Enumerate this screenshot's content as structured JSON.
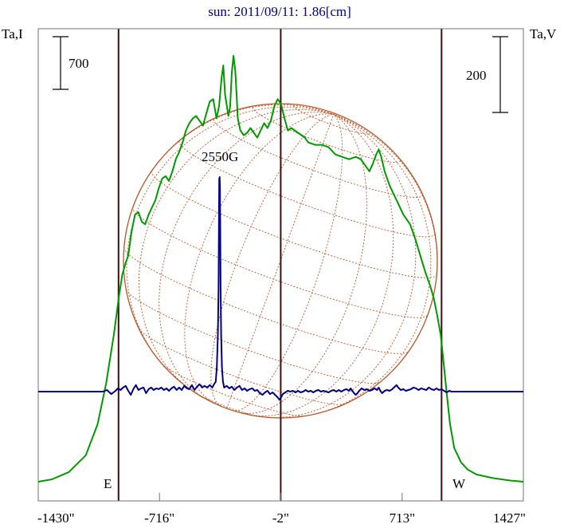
{
  "chart_data": {
    "type": "line",
    "title": "sun: 2011/09/11: 1.86[cm]",
    "left_axis_label": "Ta,I",
    "right_axis_label": "Ta,V",
    "left_scale_bar": "700",
    "right_scale_bar": "200",
    "x_tick_labels": [
      "-1430\"",
      "-716\"",
      "-2\"",
      "713\"",
      "1427\""
    ],
    "x_ticks": [
      -1430,
      -716,
      -2,
      713,
      1427
    ],
    "xlim": [
      -1430,
      1427
    ],
    "limb_labels": {
      "east": "E",
      "west": "W"
    },
    "limb_positions": [
      -957,
      945
    ],
    "center_line": -2,
    "annotations": [
      {
        "text": "2550G",
        "x": -360
      }
    ],
    "colors": {
      "stokes_I": "#009900",
      "stokes_V": "#000080",
      "disk": "#b5562a",
      "limb_lines": "#3a1010",
      "title": "#000080"
    },
    "series": [
      {
        "name": "I",
        "axis": "left",
        "points": [
          [
            -1430,
            0.01
          ],
          [
            -1350,
            0.02
          ],
          [
            -1250,
            0.05
          ],
          [
            -1150,
            0.12
          ],
          [
            -1080,
            0.25
          ],
          [
            -1030,
            0.42
          ],
          [
            -985,
            0.62
          ],
          [
            -955,
            0.78
          ],
          [
            -935,
            0.87
          ],
          [
            -915,
            0.92
          ],
          [
            -900,
            0.95
          ],
          [
            -880,
            1.05
          ],
          [
            -860,
            1.12
          ],
          [
            -840,
            1.13
          ],
          [
            -820,
            1.09
          ],
          [
            -800,
            1.08
          ],
          [
            -780,
            1.12
          ],
          [
            -760,
            1.15
          ],
          [
            -740,
            1.18
          ],
          [
            -720,
            1.23
          ],
          [
            -700,
            1.27
          ],
          [
            -680,
            1.28
          ],
          [
            -660,
            1.26
          ],
          [
            -640,
            1.3
          ],
          [
            -620,
            1.35
          ],
          [
            -600,
            1.38
          ],
          [
            -580,
            1.42
          ],
          [
            -560,
            1.47
          ],
          [
            -540,
            1.5
          ],
          [
            -520,
            1.52
          ],
          [
            -500,
            1.53
          ],
          [
            -480,
            1.51
          ],
          [
            -460,
            1.49
          ],
          [
            -440,
            1.54
          ],
          [
            -420,
            1.59
          ],
          [
            -400,
            1.6
          ],
          [
            -380,
            1.52
          ],
          [
            -365,
            1.57
          ],
          [
            -350,
            1.69
          ],
          [
            -340,
            1.74
          ],
          [
            -330,
            1.62
          ],
          [
            -310,
            1.53
          ],
          [
            -300,
            1.57
          ],
          [
            -290,
            1.71
          ],
          [
            -280,
            1.78
          ],
          [
            -270,
            1.72
          ],
          [
            -262,
            1.62
          ],
          [
            -255,
            1.52
          ],
          [
            -240,
            1.47
          ],
          [
            -220,
            1.45
          ],
          [
            -200,
            1.46
          ],
          [
            -180,
            1.48
          ],
          [
            -160,
            1.46
          ],
          [
            -140,
            1.44
          ],
          [
            -120,
            1.47
          ],
          [
            -100,
            1.5
          ],
          [
            -80,
            1.48
          ],
          [
            -60,
            1.51
          ],
          [
            -40,
            1.57
          ],
          [
            -20,
            1.6
          ],
          [
            0,
            1.58
          ],
          [
            20,
            1.52
          ],
          [
            40,
            1.47
          ],
          [
            60,
            1.48
          ],
          [
            80,
            1.47
          ],
          [
            100,
            1.46
          ],
          [
            120,
            1.45
          ],
          [
            140,
            1.44
          ],
          [
            160,
            1.42
          ],
          [
            200,
            1.41
          ],
          [
            240,
            1.41
          ],
          [
            280,
            1.4
          ],
          [
            320,
            1.37
          ],
          [
            360,
            1.36
          ],
          [
            400,
            1.35
          ],
          [
            440,
            1.36
          ],
          [
            470,
            1.35
          ],
          [
            500,
            1.32
          ],
          [
            520,
            1.3
          ],
          [
            540,
            1.33
          ],
          [
            560,
            1.37
          ],
          [
            575,
            1.39
          ],
          [
            590,
            1.36
          ],
          [
            610,
            1.3
          ],
          [
            640,
            1.24
          ],
          [
            680,
            1.18
          ],
          [
            720,
            1.12
          ],
          [
            760,
            1.08
          ],
          [
            790,
            1.02
          ],
          [
            820,
            0.95
          ],
          [
            850,
            0.88
          ],
          [
            880,
            0.82
          ],
          [
            900,
            0.77
          ],
          [
            920,
            0.7
          ],
          [
            940,
            0.62
          ],
          [
            955,
            0.52
          ],
          [
            975,
            0.38
          ],
          [
            995,
            0.25
          ],
          [
            1020,
            0.15
          ],
          [
            1060,
            0.09
          ],
          [
            1100,
            0.06
          ],
          [
            1150,
            0.04
          ],
          [
            1250,
            0.025
          ],
          [
            1350,
            0.015
          ],
          [
            1427,
            0.01
          ]
        ]
      },
      {
        "name": "V",
        "axis": "right",
        "points": [
          [
            -1430,
            0.0
          ],
          [
            -1050,
            0.0
          ],
          [
            -1025,
            0.02
          ],
          [
            -1000,
            -0.03
          ],
          [
            -975,
            0.01
          ],
          [
            -960,
            0.04
          ],
          [
            -945,
            0.02
          ],
          [
            -930,
            0.05
          ],
          [
            -915,
            0.07
          ],
          [
            -900,
            0.01
          ],
          [
            -885,
            -0.04
          ],
          [
            -870,
            0.03
          ],
          [
            -855,
            0.08
          ],
          [
            -840,
            0.02
          ],
          [
            -825,
            0.04
          ],
          [
            -810,
            0.05
          ],
          [
            -795,
            -0.02
          ],
          [
            -780,
            0.03
          ],
          [
            -765,
            0.05
          ],
          [
            -750,
            0.02
          ],
          [
            -735,
            0.04
          ],
          [
            -720,
            0.03
          ],
          [
            -705,
            0.05
          ],
          [
            -690,
            0.02
          ],
          [
            -675,
            0.04
          ],
          [
            -660,
            0.01
          ],
          [
            -645,
            0.04
          ],
          [
            -630,
            0.06
          ],
          [
            -615,
            0.02
          ],
          [
            -600,
            0.05
          ],
          [
            -585,
            0.02
          ],
          [
            -570,
            0.07
          ],
          [
            -555,
            0.04
          ],
          [
            -540,
            0.03
          ],
          [
            -525,
            0.08
          ],
          [
            -510,
            0.02
          ],
          [
            -495,
            0.06
          ],
          [
            -480,
            0.09
          ],
          [
            -465,
            0.05
          ],
          [
            -450,
            0.07
          ],
          [
            -435,
            0.05
          ],
          [
            -420,
            0.08
          ],
          [
            -405,
            0.05
          ],
          [
            -395,
            0.09
          ],
          [
            -385,
            0.12
          ],
          [
            -378,
            0.3
          ],
          [
            -372,
            0.7
          ],
          [
            -368,
            1.3
          ],
          [
            -366,
            2.0
          ],
          [
            -364,
            2.6
          ],
          [
            -362,
            2.63
          ],
          [
            -360,
            2.5
          ],
          [
            -358,
            2.0
          ],
          [
            -356,
            1.3
          ],
          [
            -353,
            0.7
          ],
          [
            -348,
            0.3
          ],
          [
            -342,
            0.12
          ],
          [
            -335,
            0.05
          ],
          [
            -320,
            0.07
          ],
          [
            -305,
            0.04
          ],
          [
            -290,
            0.06
          ],
          [
            -275,
            0.02
          ],
          [
            -260,
            0.05
          ],
          [
            -245,
            0.07
          ],
          [
            -230,
            0.02
          ],
          [
            -215,
            0.04
          ],
          [
            -200,
            0.01
          ],
          [
            -185,
            0.03
          ],
          [
            -170,
            0.04
          ],
          [
            -155,
            0.01
          ],
          [
            -140,
            0.02
          ],
          [
            -125,
            -0.02
          ],
          [
            -110,
            -0.04
          ],
          [
            -95,
            -0.01
          ],
          [
            -80,
            0.01
          ],
          [
            -65,
            -0.03
          ],
          [
            -50,
            -0.01
          ],
          [
            -35,
            -0.04
          ],
          [
            -20,
            -0.07
          ],
          [
            -10,
            -0.1
          ],
          [
            0,
            -0.07
          ],
          [
            10,
            -0.03
          ],
          [
            25,
            -0.01
          ],
          [
            40,
            0.01
          ],
          [
            55,
            0.0
          ],
          [
            70,
            0.01
          ],
          [
            85,
            -0.01
          ],
          [
            100,
            0.01
          ],
          [
            115,
            -0.01
          ],
          [
            130,
            0.0
          ],
          [
            145,
            0.02
          ],
          [
            160,
            0.0
          ],
          [
            175,
            0.01
          ],
          [
            190,
            -0.01
          ],
          [
            205,
            0.01
          ],
          [
            220,
            0.02
          ],
          [
            235,
            0.0
          ],
          [
            250,
            0.01
          ],
          [
            265,
            0.0
          ],
          [
            280,
            -0.01
          ],
          [
            295,
            0.01
          ],
          [
            310,
            0.02
          ],
          [
            325,
            0.0
          ],
          [
            340,
            0.02
          ],
          [
            355,
            0.0
          ],
          [
            370,
            0.02
          ],
          [
            385,
            0.03
          ],
          [
            400,
            0.01
          ],
          [
            410,
            0.04
          ],
          [
            420,
            0.01
          ],
          [
            430,
            -0.02
          ],
          [
            440,
            -0.04
          ],
          [
            450,
            -0.02
          ],
          [
            460,
            0.01
          ],
          [
            475,
            0.04
          ],
          [
            490,
            0.02
          ],
          [
            505,
            0.03
          ],
          [
            520,
            0.01
          ],
          [
            535,
            0.02
          ],
          [
            550,
            0.04
          ],
          [
            565,
            0.02
          ],
          [
            575,
            0.05
          ],
          [
            585,
            0.01
          ],
          [
            595,
            -0.02
          ],
          [
            610,
            0.01
          ],
          [
            625,
            0.02
          ],
          [
            640,
            0.01
          ],
          [
            655,
            0.03
          ],
          [
            670,
            0.06
          ],
          [
            680,
            0.08
          ],
          [
            690,
            0.05
          ],
          [
            705,
            0.02
          ],
          [
            720,
            0.03
          ],
          [
            735,
            0.01
          ],
          [
            750,
            0.02
          ],
          [
            765,
            0.03
          ],
          [
            780,
            0.05
          ],
          [
            795,
            0.04
          ],
          [
            810,
            0.02
          ],
          [
            825,
            0.04
          ],
          [
            840,
            0.03
          ],
          [
            855,
            0.02
          ],
          [
            870,
            0.05
          ],
          [
            885,
            0.03
          ],
          [
            900,
            0.02
          ],
          [
            915,
            0.04
          ],
          [
            930,
            0.02
          ],
          [
            945,
            0.03
          ],
          [
            960,
            0.01
          ],
          [
            975,
            -0.01
          ],
          [
            990,
            0.01
          ],
          [
            1005,
            0.0
          ],
          [
            1020,
            0.0
          ],
          [
            1427,
            0.0
          ]
        ]
      }
    ]
  }
}
